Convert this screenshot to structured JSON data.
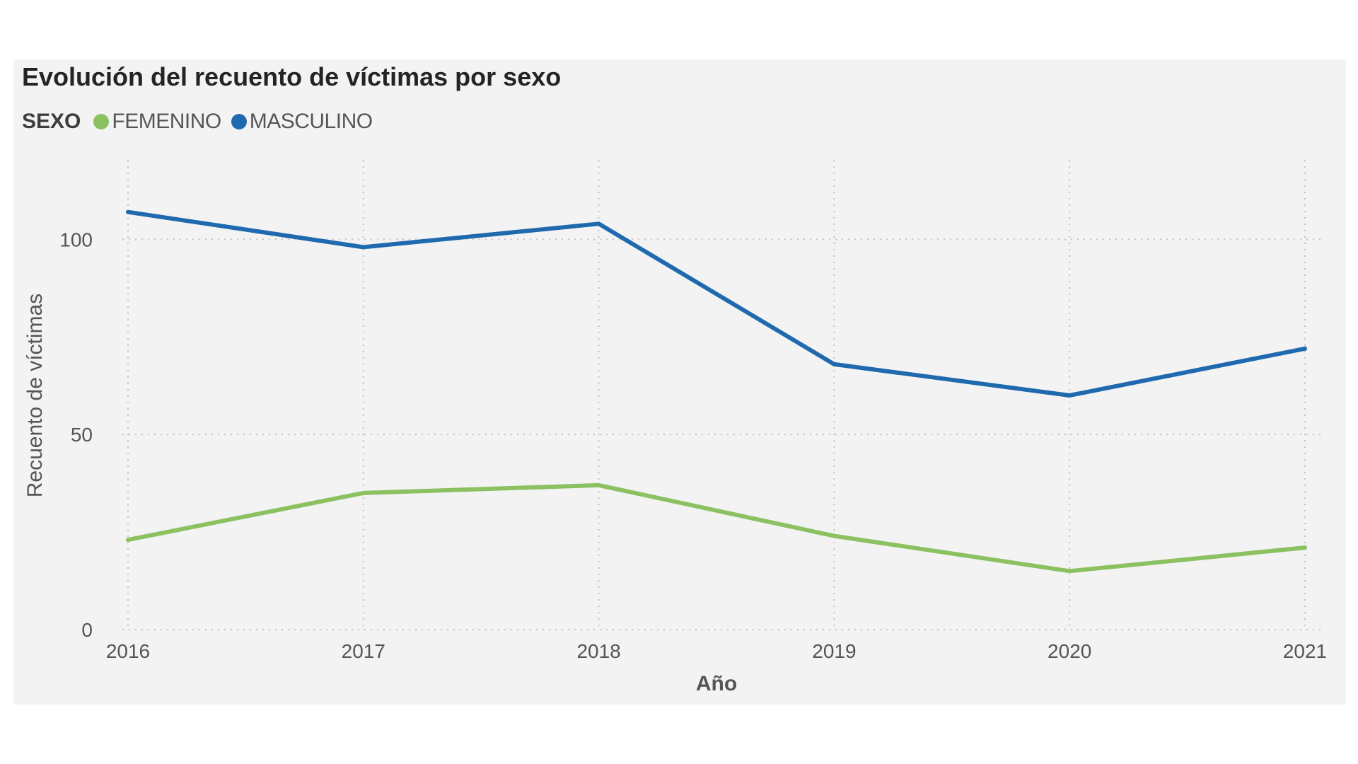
{
  "chart_data": {
    "type": "line",
    "title": "Evolución del recuento de víctimas por sexo",
    "legend_title": "SEXO",
    "legend_position": "top-left",
    "xlabel": "Año",
    "ylabel": "Recuento de víctimas",
    "categories": [
      "2016",
      "2017",
      "2018",
      "2019",
      "2020",
      "2021"
    ],
    "ylim": [
      0,
      120
    ],
    "yticks": [
      0,
      50,
      100
    ],
    "grid": true,
    "series": [
      {
        "name": "FEMENINO",
        "color": "#8bc161",
        "values": [
          23,
          35,
          37,
          24,
          15,
          21
        ]
      },
      {
        "name": "MASCULINO",
        "color": "#1f69ae",
        "values": [
          107,
          98,
          104,
          68,
          60,
          72
        ]
      }
    ]
  }
}
